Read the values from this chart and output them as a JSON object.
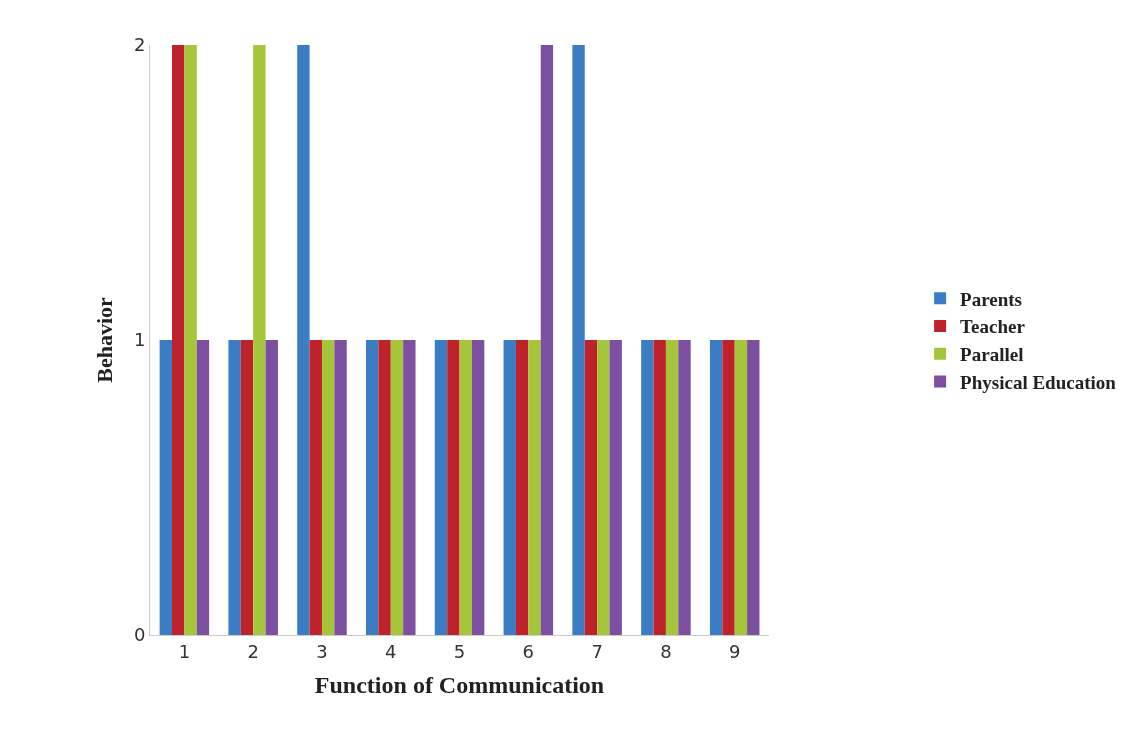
{
  "chart_data": {
    "type": "bar",
    "xlabel": "Function of Communication",
    "ylabel": "Behavior",
    "categories": [
      "1",
      "2",
      "3",
      "4",
      "5",
      "6",
      "7",
      "8",
      "9"
    ],
    "series": [
      {
        "name": "Parents",
        "color": "#3b7dc4",
        "values": [
          1,
          1,
          2,
          1,
          1,
          1,
          2,
          1,
          1
        ]
      },
      {
        "name": "Teacher",
        "color": "#c0222b",
        "values": [
          2,
          1,
          1,
          1,
          1,
          1,
          1,
          1,
          1
        ]
      },
      {
        "name": "Parallel",
        "color": "#a5c63b",
        "values": [
          2,
          2,
          1,
          1,
          1,
          1,
          1,
          1,
          1
        ]
      },
      {
        "name": "Physical Education",
        "color": "#7d4fa0",
        "values": [
          1,
          1,
          1,
          1,
          1,
          2,
          1,
          1,
          1
        ]
      }
    ],
    "ylim": [
      0,
      2
    ],
    "yticks": [
      0,
      1,
      2
    ],
    "legend": "right"
  }
}
